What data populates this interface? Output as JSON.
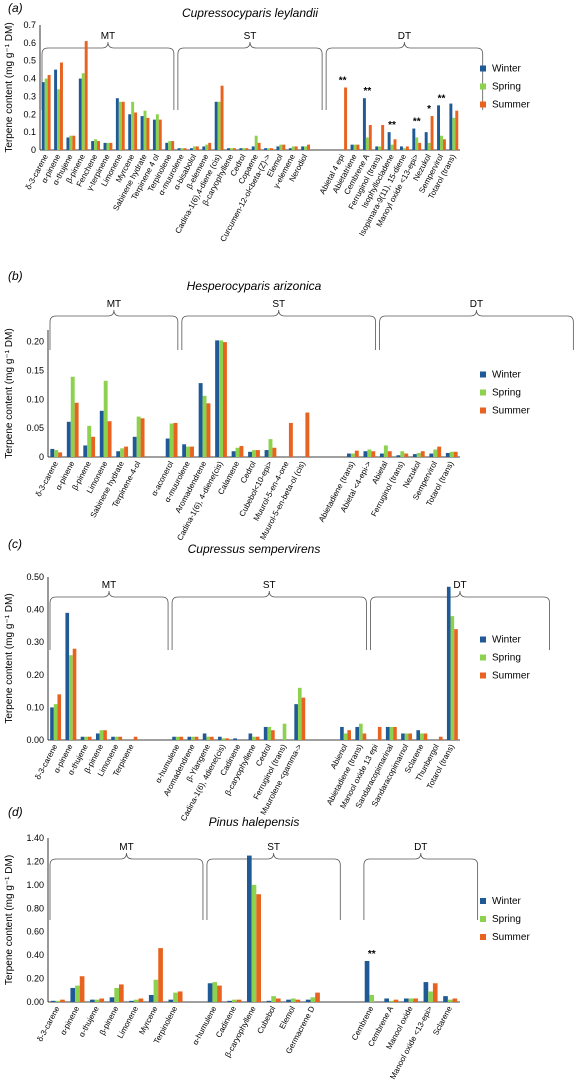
{
  "legend": [
    "Winter",
    "Spring",
    "Summer"
  ],
  "colors": {
    "Winter": "#1f5a96",
    "Spring": "#8cd24f",
    "Summer": "#e8631f"
  },
  "chart_data": [
    {
      "type": "bar",
      "panel": "(a)",
      "title": "Cupressocyparis leylandii",
      "ylabel": "Terpene content (mg g⁻¹ DM)",
      "ylim": [
        0,
        0.7
      ],
      "yticks": [
        "0",
        "0.1",
        "0.2",
        "0.3",
        "0.4",
        "0.5",
        "0.6",
        "0.7"
      ],
      "groups": [
        {
          "label": "MT",
          "from": 0,
          "to": 10
        },
        {
          "label": "ST",
          "from": 11,
          "to": 22
        },
        {
          "label": "DT",
          "from": 23,
          "to": 35
        }
      ],
      "categories": [
        "δ-3-carene",
        "α-pinene",
        "α-thujene",
        "β-pinene",
        "Fenchene",
        "γ-terpinene",
        "Limonene",
        "Myrcene",
        "Sabinene hydrate",
        "Terpinene 4 ol",
        "Terpinolene",
        "α-muurolene",
        "α-bisabolol",
        "β-elemene",
        "Cadina-1(6),4-diene (cis)",
        "β-caryophyllene",
        "Cedrol",
        "Copaene",
        "Curcumen-12-ol<beta-(Z)->",
        "Elemol",
        "γ-elemene",
        "Nerodiol",
        "Abietal 4 epi",
        "Abietatriene",
        "Cembrene A",
        "Ferruginol (trans)",
        "Isophyllocladene",
        "Isopimara-9(11), 15-diene",
        "Manoyl oxide <13-epi>",
        "Nezukol",
        "Sempervirol",
        "Totarol (trans)"
      ],
      "category_slots": [
        0,
        1,
        2,
        3,
        4,
        5,
        6,
        7,
        8,
        9,
        10,
        11,
        12,
        13,
        14,
        15,
        16,
        17,
        18,
        19,
        20,
        21,
        24,
        25,
        26,
        27,
        28,
        29,
        30,
        31,
        32,
        33
      ],
      "n_slots": 34,
      "series": [
        {
          "name": "Winter",
          "values": [
            0.38,
            0.45,
            0.07,
            0.4,
            0.05,
            0.04,
            0.29,
            0.2,
            0.19,
            0.17,
            0.04,
            0.01,
            0.01,
            0.02,
            0.27,
            0.01,
            0.01,
            0.02,
            0.01,
            0.02,
            0.01,
            0.02,
            0.0,
            0.03,
            0.29,
            0.02,
            0.1,
            0.02,
            0.12,
            0.1,
            0.25,
            0.26
          ]
        },
        {
          "name": "Spring",
          "values": [
            0.4,
            0.34,
            0.08,
            0.43,
            0.06,
            0.04,
            0.27,
            0.27,
            0.22,
            0.2,
            0.05,
            0.01,
            0.02,
            0.03,
            0.27,
            0.01,
            0.01,
            0.08,
            0.01,
            0.03,
            0.02,
            0.02,
            0.0,
            0.03,
            0.07,
            0.02,
            0.03,
            0.01,
            0.07,
            0.04,
            0.08,
            0.18
          ]
        },
        {
          "name": "Summer",
          "values": [
            0.42,
            0.49,
            0.08,
            0.61,
            0.05,
            0.04,
            0.27,
            0.21,
            0.18,
            0.17,
            0.05,
            0.01,
            0.02,
            0.04,
            0.36,
            0.01,
            0.01,
            0.04,
            0.01,
            0.03,
            0.02,
            0.03,
            0.35,
            0.03,
            0.14,
            0.14,
            0.06,
            0.02,
            0.04,
            0.19,
            0.06,
            0.22
          ]
        }
      ],
      "significance": [
        {
          "slot": 24,
          "label": "**"
        },
        {
          "slot": 26,
          "label": "**"
        },
        {
          "slot": 28,
          "label": "**"
        },
        {
          "slot": 30,
          "label": "**"
        },
        {
          "slot": 31,
          "label": "*"
        },
        {
          "slot": 32,
          "label": "**"
        }
      ]
    },
    {
      "type": "bar",
      "panel": "(b)",
      "title": "Hesperocyparis arizonica",
      "ylabel": "Terpene content (mg g⁻¹ DM)",
      "ylim": [
        0,
        0.22
      ],
      "yticks": [
        "0",
        "0.05",
        "0.10",
        "0.15",
        "0.20"
      ],
      "ytick_values": [
        0,
        0.05,
        0.1,
        0.15,
        0.2
      ],
      "groups": [
        {
          "label": "MT",
          "from": 0,
          "to": 7
        },
        {
          "label": "ST",
          "from": 8,
          "to": 19
        },
        {
          "label": "DT",
          "from": 20,
          "to": 31
        }
      ],
      "categories": [
        "δ-3-carene",
        "α-pinene",
        "β-pinene",
        "Limonene",
        "Sabinene hydrate",
        "Terpinene-4-ol",
        "α-aconerol",
        "α-muurolene",
        "Aromadendrene",
        "Cadina-1(6), 4-diene(cis)",
        "Calamene",
        "Cedrol",
        "Cubebol<10-epi>",
        "Muurol-5-en-4-one",
        "Muurol-5-en-beta-ol (cis)",
        "Abietadiene (trans)",
        "Abietal <4-epi->",
        "Abietal",
        "Ferruginol (trans)",
        "Nezukol",
        "Sempervirol",
        "Totarol (trans)"
      ],
      "category_slots": [
        0,
        1,
        2,
        3,
        4,
        5,
        7,
        8,
        9,
        10,
        11,
        12,
        13,
        14,
        15,
        18,
        19,
        20,
        21,
        22,
        23,
        24
      ],
      "n_slots": 25,
      "series": [
        {
          "name": "Winter",
          "values": [
            0.014,
            0.061,
            0.02,
            0.08,
            0.01,
            0.035,
            0.032,
            0.022,
            0.128,
            0.202,
            0.01,
            0.009,
            0.012,
            0.0,
            0.0,
            0.006,
            0.01,
            0.006,
            0.003,
            0.005,
            0.006,
            0.007
          ]
        },
        {
          "name": "Spring",
          "values": [
            0.012,
            0.139,
            0.054,
            0.132,
            0.015,
            0.07,
            0.058,
            0.018,
            0.106,
            0.202,
            0.016,
            0.012,
            0.031,
            0.0,
            0.0,
            0.006,
            0.013,
            0.02,
            0.01,
            0.007,
            0.013,
            0.009
          ]
        },
        {
          "name": "Summer",
          "values": [
            0.008,
            0.094,
            0.035,
            0.062,
            0.018,
            0.067,
            0.059,
            0.018,
            0.093,
            0.199,
            0.019,
            0.012,
            0.016,
            0.059,
            0.077,
            0.011,
            0.01,
            0.01,
            0.006,
            0.01,
            0.018,
            0.009
          ]
        }
      ]
    },
    {
      "type": "bar",
      "panel": "(c)",
      "title": "Cupressus sempervirens",
      "ylabel": "Terpene content (mg g⁻¹ DM)",
      "ylim": [
        0,
        0.5
      ],
      "yticks": [
        "0.00",
        "0.10",
        "0.20",
        "0.30",
        "0.40",
        "0.50"
      ],
      "ytick_values": [
        0,
        0.1,
        0.2,
        0.3,
        0.4,
        0.5
      ],
      "groups": [
        {
          "label": "MT",
          "from": 0,
          "to": 7
        },
        {
          "label": "ST",
          "from": 8,
          "to": 20
        },
        {
          "label": "DT",
          "from": 21,
          "to": 32
        }
      ],
      "categories": [
        "δ-3-carene",
        "α-pinene",
        "α-thujene",
        "β-pinene",
        "Limonene",
        "Terpinene",
        "α-humulene",
        "Aromadendrene",
        "β-Ylangene",
        "Cadina-1(6), 4diene(cis)",
        "Cadinene",
        "β-caryophyllene",
        "Cedrol",
        "Ferruginol (trans)",
        "Muurolene <gamma->",
        "Abienol",
        "Abietadiene (trans)",
        "Manool oxide 13 epi",
        "Sandaracopimarinal",
        "Sandaracopimarnol",
        "Sclarene",
        "Thunbergol",
        "Totarol (trans)"
      ],
      "category_slots": [
        0,
        1,
        2,
        3,
        4,
        5,
        8,
        9,
        10,
        11,
        12,
        13,
        14,
        15,
        16,
        19,
        20,
        21,
        22,
        23,
        24,
        25,
        26
      ],
      "n_slots": 27,
      "series": [
        {
          "name": "Winter",
          "values": [
            0.1,
            0.39,
            0.01,
            0.02,
            0.01,
            0.0,
            0.01,
            0.01,
            0.02,
            0.01,
            0.005,
            0.02,
            0.04,
            0.0,
            0.11,
            0.04,
            0.04,
            0.0,
            0.04,
            0.02,
            0.03,
            0.0,
            0.47
          ]
        },
        {
          "name": "Spring",
          "values": [
            0.11,
            0.26,
            0.01,
            0.03,
            0.01,
            0.0,
            0.01,
            0.01,
            0.01,
            0.005,
            0.0,
            0.01,
            0.04,
            0.05,
            0.16,
            0.02,
            0.05,
            0.0,
            0.04,
            0.02,
            0.02,
            0.0,
            0.38
          ]
        },
        {
          "name": "Summer",
          "values": [
            0.14,
            0.28,
            0.01,
            0.03,
            0.01,
            0.01,
            0.01,
            0.01,
            0.01,
            0.005,
            0.0,
            0.01,
            0.03,
            0.0,
            0.13,
            0.03,
            0.02,
            0.04,
            0.04,
            0.02,
            0.02,
            0.01,
            0.34
          ]
        }
      ]
    },
    {
      "type": "bar",
      "panel": "(d)",
      "title": "Pinus halepensis",
      "ylabel": "Terpene content (mg g⁻¹ DM)",
      "ylim": [
        0,
        1.4
      ],
      "yticks": [
        "0.00",
        "0.20",
        "0.40",
        "0.60",
        "0.80",
        "1.00",
        "1.20",
        "1.40"
      ],
      "ytick_values": [
        0,
        0.2,
        0.4,
        0.6,
        0.8,
        1.0,
        1.2,
        1.4
      ],
      "groups": [
        {
          "label": "MT",
          "from": 0,
          "to": 7
        },
        {
          "label": "ST",
          "from": 8,
          "to": 14
        },
        {
          "label": "DT",
          "from": 16,
          "to": 21
        }
      ],
      "categories": [
        "δ-3-carene",
        "α-pinene",
        "α-thujene",
        "β-pinene",
        "Limonene",
        "Myrcene",
        "Terpinolene",
        "α-humulene",
        "Cadinene",
        "β-caryophyllene",
        "Cubebol",
        "Elemol",
        "Germacrene D",
        "Cembrene",
        "Cembrene A",
        "Manool oxide",
        "Manool oxide <13-epi>",
        "Sclarene"
      ],
      "category_slots": [
        0,
        1,
        2,
        3,
        4,
        5,
        6,
        8,
        9,
        10,
        11,
        12,
        13,
        16,
        17,
        18,
        19,
        20
      ],
      "n_slots": 21,
      "series": [
        {
          "name": "Winter",
          "values": [
            0.01,
            0.12,
            0.02,
            0.04,
            0.01,
            0.06,
            0.02,
            0.16,
            0.01,
            1.25,
            0.01,
            0.02,
            0.02,
            0.35,
            0.03,
            0.03,
            0.17,
            0.05
          ]
        },
        {
          "name": "Spring",
          "values": [
            0.01,
            0.14,
            0.02,
            0.12,
            0.02,
            0.19,
            0.08,
            0.17,
            0.02,
            1.0,
            0.05,
            0.03,
            0.04,
            0.06,
            0.01,
            0.03,
            0.09,
            0.02
          ]
        },
        {
          "name": "Summer",
          "values": [
            0.02,
            0.22,
            0.03,
            0.15,
            0.03,
            0.46,
            0.09,
            0.14,
            0.02,
            0.92,
            0.03,
            0.02,
            0.08,
            0.0,
            0.02,
            0.03,
            0.16,
            0.03
          ]
        }
      ],
      "significance": [
        {
          "slot": 16,
          "label": "**"
        }
      ]
    }
  ]
}
